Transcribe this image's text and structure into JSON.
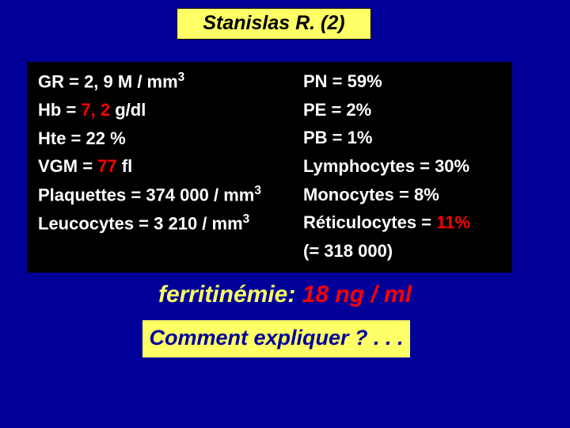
{
  "colors": {
    "slide_bg": "#000099",
    "title_bg": "#ffff66",
    "title_fg": "#000000",
    "box_bg": "#000000",
    "text_white": "#ffffff",
    "text_red": "#ff0000",
    "ferri_label": "#ffff66",
    "ferri_value": "#ff0000",
    "question_bg": "#ffff66",
    "question_fg": "#000099"
  },
  "title": "Stanislas R. (2)",
  "left": {
    "gr_a": "GR = 2, 9 M / mm",
    "gr_sup": "3",
    "hb_a": "Hb = ",
    "hb_val": "7, 2",
    "hb_b": " g/dl",
    "hte": "Hte = 22 %",
    "vgm_a": "VGM = ",
    "vgm_val": "77",
    "vgm_b": " fl",
    "plq_a": "Plaquettes =  374 000 / mm",
    "plq_sup": "3",
    "leu_a": "Leucocytes = 3 210 / mm",
    "leu_sup": "3"
  },
  "right": {
    "pn": "PN = 59%",
    "pe": "PE = 2%",
    "pb": "PB = 1%",
    "lym": "Lymphocytes = 30%",
    "mon": "Monocytes = 8%",
    "ret_a": "Réticulocytes = ",
    "ret_val": "11%",
    "ret2": "(= 318 000)"
  },
  "ferri": {
    "label": "ferritinémie: ",
    "value": "18 ng / ml"
  },
  "question": "Comment expliquer ? . . ."
}
